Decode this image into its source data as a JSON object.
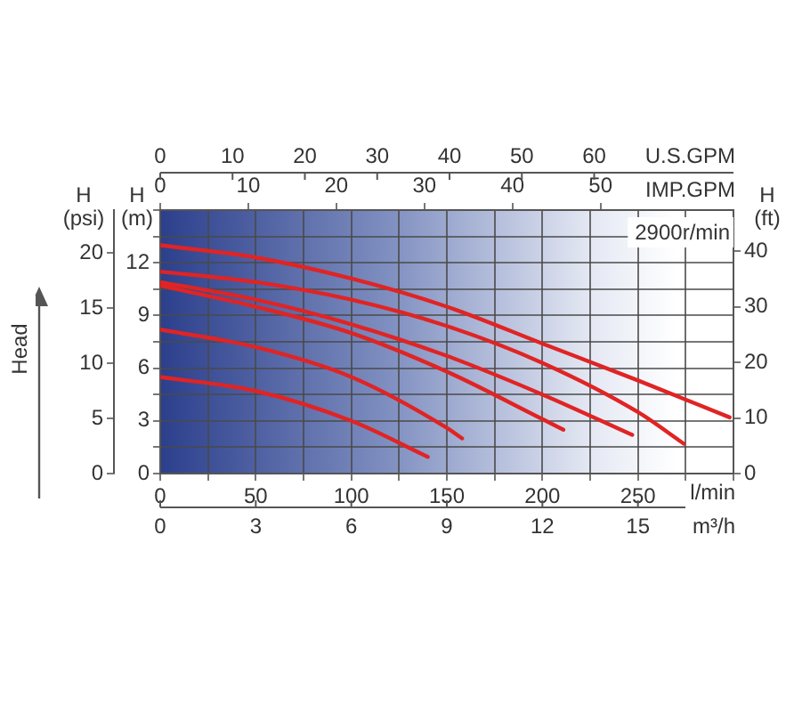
{
  "chart_data": {
    "type": "line",
    "xlabel": "l/min",
    "x2label": "IMP.GPM",
    "ylabel": "H (m)",
    "y2label": "H (psi)",
    "y3label": "H (ft)",
    "annotations": [
      "2900r/min",
      "Head",
      "0",
      "10",
      "20",
      "30",
      "40",
      "50",
      "60",
      "U.S.GPM",
      "0",
      "3",
      "6",
      "9",
      "12",
      "15",
      "m³/h"
    ],
    "xlim": [
      0,
      300
    ],
    "xticks": [
      0,
      {
        "value": 25,
        "label": null
      },
      50,
      {
        "value": 75,
        "label": null
      },
      100,
      {
        "value": 125,
        "label": null
      },
      150,
      {
        "value": 175,
        "label": null
      },
      200,
      {
        "value": 225,
        "label": null
      },
      250,
      {
        "value": 275,
        "label": null
      },
      {
        "value": 300,
        "label": null
      }
    ],
    "x2lim": [
      0,
      65.1
    ],
    "x2ticks": [
      0,
      10,
      20,
      30,
      40,
      50
    ],
    "ylim": [
      0,
      15
    ],
    "yticks": [
      0,
      {
        "value": 1.5,
        "label": null
      },
      3,
      {
        "value": 4.5,
        "label": null
      },
      6,
      {
        "value": 7.5,
        "label": null
      },
      9,
      {
        "value": 10.5,
        "label": null
      },
      12,
      {
        "value": 13.5,
        "label": null
      },
      {
        "value": 15,
        "label": null
      }
    ],
    "y2lim": [
      0,
      23.9
    ],
    "y2ticks": [
      0,
      5,
      10,
      15,
      20
    ],
    "y3lim": [
      0,
      47.4
    ],
    "y3ticks": [
      0,
      10,
      20,
      30,
      40
    ],
    "grid": true,
    "legend": false,
    "marker": "none",
    "line_style": "solid",
    "series": [
      {
        "color": "#e02424",
        "x": [
          0,
          50,
          100,
          140
        ],
        "values": [
          5.5,
          4.7,
          3.0,
          0.95
        ]
      },
      {
        "color": "#e02424",
        "x": [
          0,
          50,
          100,
          150,
          158
        ],
        "values": [
          8.2,
          7.2,
          5.5,
          2.6,
          2.0
        ]
      },
      {
        "color": "#e02424",
        "x": [
          0,
          50,
          100,
          150,
          200,
          211
        ],
        "values": [
          10.7,
          9.5,
          8.0,
          5.8,
          3.1,
          2.5
        ]
      },
      {
        "color": "#e02424",
        "x": [
          0,
          50,
          100,
          150,
          200,
          247
        ],
        "values": [
          10.9,
          9.9,
          8.5,
          6.7,
          4.5,
          2.2
        ]
      },
      {
        "color": "#e02424",
        "x": [
          0,
          50,
          100,
          150,
          200,
          250,
          274
        ],
        "values": [
          11.5,
          10.9,
          9.9,
          8.4,
          6.3,
          3.5,
          1.7
        ]
      },
      {
        "color": "#e02424",
        "x": [
          0,
          50,
          100,
          150,
          200,
          250,
          298
        ],
        "values": [
          13.0,
          12.3,
          11.1,
          9.5,
          7.4,
          5.3,
          3.2
        ]
      }
    ]
  }
}
